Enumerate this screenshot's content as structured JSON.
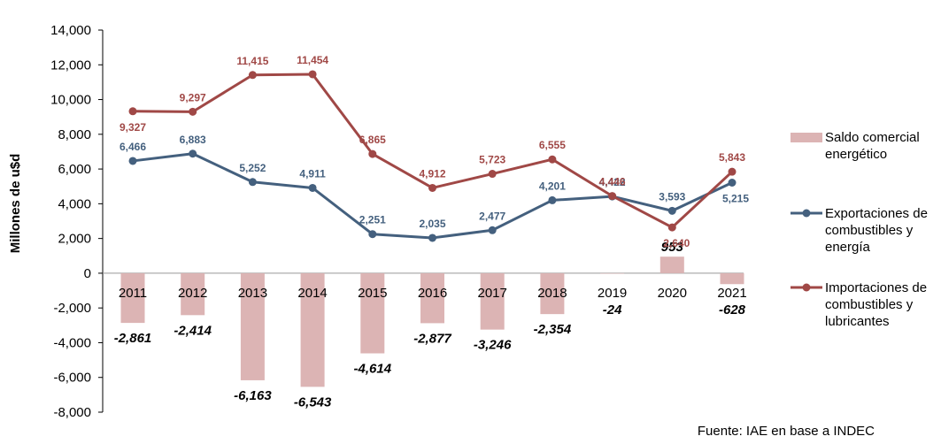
{
  "chart_data": {
    "type": "bar+line",
    "ylabel": "Millones de u$d",
    "ylim": [
      -8000,
      14000
    ],
    "yticks": [
      "14,000",
      "12,000",
      "10,000",
      "8,000",
      "6,000",
      "4,000",
      "2,000",
      "0",
      "-2,000",
      "-4,000",
      "-6,000",
      "-8,000"
    ],
    "categories": [
      "2011",
      "2012",
      "2013",
      "2014",
      "2015",
      "2016",
      "2017",
      "2018",
      "2019",
      "2020",
      "2021"
    ],
    "series": [
      {
        "name": "Saldo comercial energético",
        "kind": "bar",
        "color": "#dcb4b4",
        "values": [
          -2861,
          -2414,
          -6163,
          -6543,
          -4614,
          -2877,
          -3246,
          -2354,
          -24,
          953,
          -628
        ],
        "labels": [
          "-2,861",
          "-2,414",
          "-6,163",
          "-6,543",
          "-4,614",
          "-2,877",
          "-3,246",
          "-2,354",
          "-24",
          "953",
          "-628"
        ]
      },
      {
        "name": "Exportaciones de combustibles y energía",
        "kind": "line",
        "color": "#44607e",
        "values": [
          6466,
          6883,
          5252,
          4911,
          2251,
          2035,
          2477,
          4201,
          4422,
          3593,
          5215
        ],
        "labels": [
          "6,466",
          "6,883",
          "5,252",
          "4,911",
          "2,251",
          "2,035",
          "2,477",
          "4,201",
          "4,422",
          "3,593",
          "5,215"
        ]
      },
      {
        "name": "Importaciones de combustibles y lubricantes",
        "kind": "line",
        "color": "#a04846",
        "values": [
          9327,
          9297,
          11415,
          11454,
          6865,
          4912,
          5723,
          6555,
          4446,
          2640,
          5843
        ],
        "labels": [
          "9,327",
          "9,297",
          "11,415",
          "11,454",
          "6,865",
          "4,912",
          "5,723",
          "6,555",
          "4,446",
          "2,640",
          "5,843"
        ]
      }
    ],
    "legend": {
      "placement": "right",
      "items": [
        {
          "lines": [
            "Saldo comercial",
            "energético"
          ]
        },
        {
          "lines": [
            "Exportaciones de",
            "combustibles y",
            "energía"
          ]
        },
        {
          "lines": [
            "Importaciones de",
            "combustibles y",
            "lubricantes"
          ]
        }
      ]
    },
    "source": "Fuente: IAE en base a INDEC"
  }
}
